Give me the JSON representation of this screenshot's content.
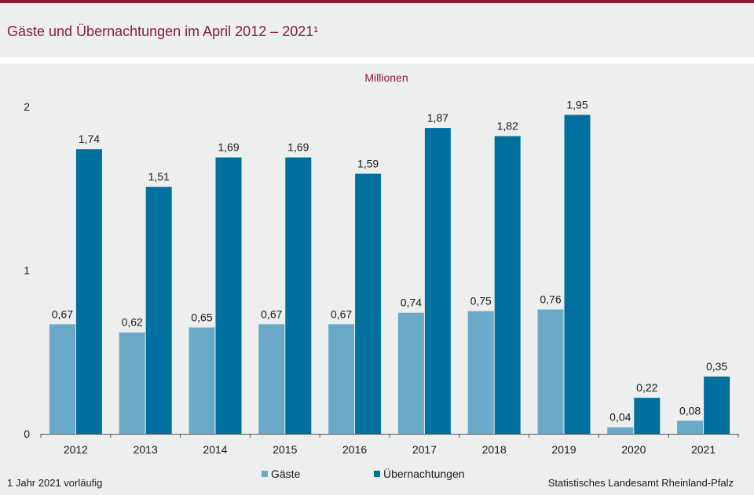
{
  "header": {
    "title": "Gäste und Übernachtungen im April 2012 – 2021¹"
  },
  "footer": {
    "footnote": "1 Jahr 2021 vorläufig",
    "source": "Statistisches Landesamt Rheinland-Pfalz"
  },
  "colors": {
    "brand": "#8b1c34",
    "gaeste": "#6aaac8",
    "uebernachtungen": "#00709f"
  },
  "chart_data": {
    "type": "bar",
    "unit_label": "Millionen",
    "categories": [
      "2012",
      "2013",
      "2014",
      "2015",
      "2016",
      "2017",
      "2018",
      "2019",
      "2020",
      "2021"
    ],
    "series": [
      {
        "name": "Gäste",
        "values": [
          0.67,
          0.62,
          0.65,
          0.67,
          0.67,
          0.74,
          0.75,
          0.76,
          0.04,
          0.08
        ],
        "labels": [
          "0,67",
          "0,62",
          "0,65",
          "0,67",
          "0,67",
          "0,74",
          "0,75",
          "0,76",
          "0,04",
          "0,08"
        ]
      },
      {
        "name": "Übernachtungen",
        "values": [
          1.74,
          1.51,
          1.69,
          1.69,
          1.59,
          1.87,
          1.82,
          1.95,
          0.22,
          0.35
        ],
        "labels": [
          "1,74",
          "1,51",
          "1,69",
          "1,69",
          "1,59",
          "1,87",
          "1,82",
          "1,95",
          "0,22",
          "0,35"
        ]
      }
    ],
    "ylim": [
      0,
      2
    ],
    "yticks": [
      "0",
      "1",
      "2"
    ],
    "ytick_values": [
      0,
      1,
      2
    ],
    "grid": false,
    "legend_position": "bottom"
  }
}
